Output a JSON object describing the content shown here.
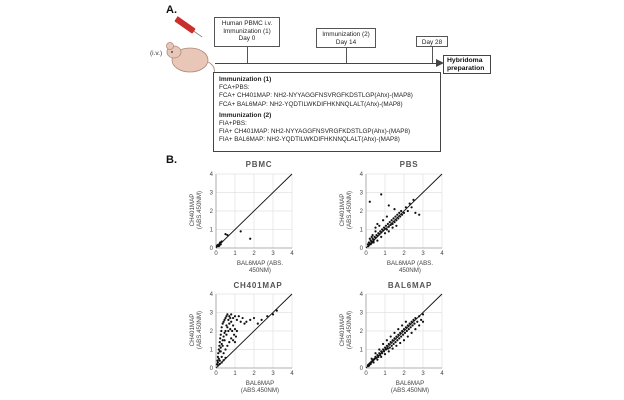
{
  "panel_a": {
    "label": "A.",
    "route_label": "(i.v.)",
    "timeline_boxes": [
      {
        "lines": [
          "Human PBMC i.v.",
          "Immunization (1)",
          "Day 0"
        ]
      },
      {
        "lines": [
          "Immunization (2)",
          "Day 14"
        ]
      },
      {
        "lines": [
          "Day 28"
        ]
      }
    ],
    "hybridoma_label": [
      "Hybridoma",
      "preparation"
    ],
    "immunization": [
      {
        "title": "Immunization (1)",
        "lines": [
          "FCA+PBS:",
          "FCA+ CH401MAP: NH2-NYYAGGFNSVRGFKDSTLGP(Ahx)-(MAP8)",
          "FCA+ BAL6MAP: NH2-YQDTILWKDIFHKNNQLALT(Ahx)-(MAP8)"
        ]
      },
      {
        "title": "Immunization (2)",
        "lines": [
          "FIA+PBS:",
          "FIA+ CH401MAP: NH2-NYYAGGFNSVRGFKDSTLGP(Ahx)-(MAP8)",
          "FIA+ BAL6MAP: NH2-YQDTILWKDIFHKNNQLALT(Ahx)-(MAP8)"
        ]
      }
    ]
  },
  "panel_b": {
    "label": "B.",
    "plots": [
      {
        "title": "PBMC",
        "ylabel": [
          "CH401MAP",
          "(ABS.450NM)"
        ],
        "xlabel": [
          "BAL6MAP (ABS.",
          "450NM)"
        ]
      },
      {
        "title": "PBS",
        "ylabel": [
          "CH401MAP",
          "(ABS.450NM)"
        ],
        "xlabel": [
          "BAL6MAP (ABS.",
          "450NM)"
        ]
      },
      {
        "title": "CH401MAP",
        "ylabel": [
          "CH401MAP",
          "(ABS.450NM)"
        ],
        "xlabel": [
          "BAL6MAP",
          "(ABS.450NM)"
        ]
      },
      {
        "title": "BAL6MAP",
        "ylabel": [
          "CH401MAP",
          "(ABS.450NM)"
        ],
        "xlabel": [
          "BAL6MAP",
          "(ABS.450NM)"
        ]
      }
    ]
  },
  "chart_data": [
    {
      "type": "scatter",
      "title": "PBMC",
      "xlabel": "BAL6MAP (ABS. 450NM)",
      "ylabel": "CH401MAP (ABS.450NM)",
      "xlim": [
        0,
        4
      ],
      "ylim": [
        0,
        4
      ],
      "xticks": [
        "0",
        "1",
        "2",
        "3",
        "4"
      ],
      "yticks": [
        "0",
        "1",
        "2",
        "3",
        "4"
      ],
      "reference_line": "y = x",
      "points": [
        [
          0.05,
          0.1
        ],
        [
          0.08,
          0.15
        ],
        [
          0.1,
          0.12
        ],
        [
          0.12,
          0.18
        ],
        [
          0.15,
          0.1
        ],
        [
          0.2,
          0.25
        ],
        [
          0.25,
          0.2
        ],
        [
          0.3,
          0.35
        ],
        [
          0.22,
          0.3
        ],
        [
          0.18,
          0.14
        ],
        [
          0.5,
          0.75
        ],
        [
          0.6,
          0.7
        ],
        [
          1.3,
          0.9
        ],
        [
          1.8,
          0.5
        ]
      ]
    },
    {
      "type": "scatter",
      "title": "PBS",
      "xlabel": "BAL6MAP (ABS. 450NM)",
      "ylabel": "CH401MAP (ABS.450NM)",
      "xlim": [
        0,
        4
      ],
      "ylim": [
        0,
        4
      ],
      "xticks": [
        "0",
        "1",
        "2",
        "3",
        "4"
      ],
      "yticks": [
        "0",
        "1",
        "2",
        "3",
        "4"
      ],
      "reference_line": "y = x",
      "points": [
        [
          0.1,
          0.2
        ],
        [
          0.15,
          0.3
        ],
        [
          0.2,
          0.25
        ],
        [
          0.25,
          0.4
        ],
        [
          0.3,
          0.35
        ],
        [
          0.35,
          0.5
        ],
        [
          0.4,
          0.45
        ],
        [
          0.45,
          0.6
        ],
        [
          0.5,
          0.55
        ],
        [
          0.55,
          0.7
        ],
        [
          0.6,
          0.65
        ],
        [
          0.65,
          0.8
        ],
        [
          0.7,
          0.75
        ],
        [
          0.75,
          0.9
        ],
        [
          0.8,
          0.85
        ],
        [
          0.85,
          1.0
        ],
        [
          0.9,
          0.95
        ],
        [
          0.95,
          1.1
        ],
        [
          1.0,
          1.05
        ],
        [
          1.05,
          1.2
        ],
        [
          1.1,
          1.0
        ],
        [
          1.15,
          1.3
        ],
        [
          1.2,
          1.15
        ],
        [
          1.25,
          1.4
        ],
        [
          1.3,
          1.25
        ],
        [
          1.35,
          1.5
        ],
        [
          1.4,
          1.3
        ],
        [
          1.45,
          1.6
        ],
        [
          1.5,
          1.4
        ],
        [
          1.55,
          1.7
        ],
        [
          1.6,
          1.5
        ],
        [
          1.65,
          1.8
        ],
        [
          1.7,
          1.6
        ],
        [
          1.75,
          1.9
        ],
        [
          1.8,
          1.7
        ],
        [
          1.85,
          2.0
        ],
        [
          1.9,
          1.8
        ],
        [
          2.0,
          1.9
        ],
        [
          2.1,
          2.2
        ],
        [
          2.2,
          2.0
        ],
        [
          2.3,
          2.4
        ],
        [
          2.4,
          2.2
        ],
        [
          2.5,
          2.6
        ],
        [
          0.3,
          0.6
        ],
        [
          0.5,
          0.9
        ],
        [
          0.7,
          1.2
        ],
        [
          0.9,
          1.5
        ],
        [
          1.1,
          1.7
        ],
        [
          0.4,
          0.3
        ],
        [
          0.6,
          0.4
        ],
        [
          0.8,
          0.6
        ],
        [
          1.0,
          0.8
        ],
        [
          1.2,
          0.9
        ],
        [
          1.4,
          1.1
        ],
        [
          1.6,
          1.2
        ],
        [
          0.2,
          0.5
        ],
        [
          0.35,
          0.7
        ],
        [
          0.5,
          1.1
        ],
        [
          0.6,
          1.3
        ],
        [
          0.2,
          2.5
        ],
        [
          0.8,
          2.9
        ],
        [
          1.2,
          2.3
        ],
        [
          1.5,
          2.1
        ],
        [
          2.6,
          1.9
        ],
        [
          2.8,
          1.8
        ],
        [
          0.15,
          0.15
        ],
        [
          0.25,
          0.2
        ],
        [
          0.3,
          0.28
        ],
        [
          0.12,
          0.1
        ],
        [
          0.4,
          0.38
        ]
      ]
    },
    {
      "type": "scatter",
      "title": "CH401MAP",
      "xlabel": "BAL6MAP (ABS.450NM)",
      "ylabel": "CH401MAP (ABS.450NM)",
      "xlim": [
        0,
        4
      ],
      "ylim": [
        0,
        4
      ],
      "xticks": [
        "0",
        "1",
        "2",
        "3",
        "4"
      ],
      "yticks": [
        "0",
        "1",
        "2",
        "3",
        "4"
      ],
      "reference_line": "y = x",
      "points": [
        [
          0.05,
          0.2
        ],
        [
          0.08,
          0.4
        ],
        [
          0.1,
          0.6
        ],
        [
          0.12,
          0.8
        ],
        [
          0.15,
          1.0
        ],
        [
          0.18,
          1.2
        ],
        [
          0.2,
          1.4
        ],
        [
          0.22,
          1.6
        ],
        [
          0.25,
          1.8
        ],
        [
          0.28,
          2.0
        ],
        [
          0.3,
          2.2
        ],
        [
          0.35,
          2.4
        ],
        [
          0.4,
          2.5
        ],
        [
          0.45,
          2.6
        ],
        [
          0.5,
          2.7
        ],
        [
          0.55,
          2.8
        ],
        [
          0.6,
          2.9
        ],
        [
          0.7,
          2.8
        ],
        [
          0.8,
          2.9
        ],
        [
          0.9,
          2.7
        ],
        [
          1.0,
          2.8
        ],
        [
          1.1,
          2.6
        ],
        [
          1.2,
          2.8
        ],
        [
          1.3,
          2.5
        ],
        [
          1.4,
          2.7
        ],
        [
          1.5,
          2.4
        ],
        [
          0.2,
          0.9
        ],
        [
          0.3,
          1.3
        ],
        [
          0.4,
          1.7
        ],
        [
          0.5,
          2.0
        ],
        [
          0.6,
          2.2
        ],
        [
          0.7,
          2.4
        ],
        [
          0.8,
          2.5
        ],
        [
          0.9,
          2.3
        ],
        [
          1.0,
          2.1
        ],
        [
          1.1,
          2.0
        ],
        [
          0.15,
          0.5
        ],
        [
          0.25,
          0.9
        ],
        [
          0.35,
          1.2
        ],
        [
          0.45,
          1.5
        ],
        [
          0.55,
          1.8
        ],
        [
          0.65,
          2.0
        ],
        [
          0.75,
          2.1
        ],
        [
          0.85,
          2.0
        ],
        [
          0.95,
          1.8
        ],
        [
          1.05,
          1.7
        ],
        [
          0.1,
          0.3
        ],
        [
          0.2,
          0.4
        ],
        [
          0.3,
          0.6
        ],
        [
          0.4,
          0.8
        ],
        [
          0.5,
          1.0
        ],
        [
          0.6,
          1.2
        ],
        [
          0.7,
          1.4
        ],
        [
          0.8,
          1.6
        ],
        [
          0.9,
          1.5
        ],
        [
          1.0,
          1.4
        ],
        [
          0.12,
          0.15
        ],
        [
          0.2,
          0.22
        ],
        [
          0.3,
          0.3
        ],
        [
          0.4,
          0.42
        ],
        [
          0.5,
          0.55
        ],
        [
          1.6,
          2.5
        ],
        [
          1.8,
          2.6
        ],
        [
          2.0,
          2.7
        ],
        [
          2.2,
          2.4
        ],
        [
          2.4,
          2.6
        ],
        [
          2.7,
          2.8
        ],
        [
          3.0,
          2.9
        ],
        [
          3.2,
          3.1
        ],
        [
          0.25,
          1.1
        ],
        [
          0.35,
          1.5
        ],
        [
          0.45,
          1.9
        ],
        [
          0.55,
          2.3
        ],
        [
          0.65,
          2.6
        ],
        [
          0.75,
          2.7
        ]
      ]
    },
    {
      "type": "scatter",
      "title": "BAL6MAP",
      "xlabel": "BAL6MAP (ABS.450NM)",
      "ylabel": "CH401MAP (ABS.450NM)",
      "xlim": [
        0,
        4
      ],
      "ylim": [
        0,
        4
      ],
      "xticks": [
        "0",
        "1",
        "2",
        "3",
        "4"
      ],
      "yticks": [
        "0",
        "1",
        "2",
        "3",
        "4"
      ],
      "reference_line": "y = x",
      "points": [
        [
          0.1,
          0.15
        ],
        [
          0.15,
          0.2
        ],
        [
          0.2,
          0.25
        ],
        [
          0.25,
          0.3
        ],
        [
          0.3,
          0.35
        ],
        [
          0.35,
          0.4
        ],
        [
          0.4,
          0.45
        ],
        [
          0.45,
          0.5
        ],
        [
          0.5,
          0.6
        ],
        [
          0.55,
          0.55
        ],
        [
          0.6,
          0.7
        ],
        [
          0.65,
          0.6
        ],
        [
          0.7,
          0.8
        ],
        [
          0.75,
          0.7
        ],
        [
          0.8,
          0.9
        ],
        [
          0.85,
          0.8
        ],
        [
          0.9,
          1.0
        ],
        [
          0.95,
          0.9
        ],
        [
          1.0,
          1.1
        ],
        [
          1.05,
          1.0
        ],
        [
          1.1,
          1.2
        ],
        [
          1.15,
          1.05
        ],
        [
          1.2,
          1.3
        ],
        [
          1.25,
          1.1
        ],
        [
          1.3,
          1.4
        ],
        [
          1.35,
          1.2
        ],
        [
          1.4,
          1.5
        ],
        [
          1.45,
          1.3
        ],
        [
          1.5,
          1.6
        ],
        [
          1.55,
          1.4
        ],
        [
          1.6,
          1.7
        ],
        [
          1.65,
          1.5
        ],
        [
          1.7,
          1.8
        ],
        [
          1.75,
          1.6
        ],
        [
          1.8,
          1.9
        ],
        [
          1.85,
          1.7
        ],
        [
          1.9,
          2.0
        ],
        [
          1.95,
          1.8
        ],
        [
          2.0,
          2.1
        ],
        [
          2.05,
          1.9
        ],
        [
          2.1,
          2.2
        ],
        [
          2.15,
          2.0
        ],
        [
          2.2,
          2.3
        ],
        [
          2.25,
          2.1
        ],
        [
          2.3,
          2.4
        ],
        [
          2.35,
          2.2
        ],
        [
          2.4,
          2.5
        ],
        [
          2.45,
          2.3
        ],
        [
          2.5,
          2.6
        ],
        [
          2.55,
          2.4
        ],
        [
          2.6,
          2.7
        ],
        [
          2.7,
          2.5
        ],
        [
          2.8,
          2.8
        ],
        [
          2.9,
          2.6
        ],
        [
          3.0,
          2.9
        ],
        [
          0.3,
          0.5
        ],
        [
          0.5,
          0.8
        ],
        [
          0.7,
          1.0
        ],
        [
          0.9,
          1.3
        ],
        [
          1.1,
          1.5
        ],
        [
          1.3,
          1.7
        ],
        [
          1.5,
          1.9
        ],
        [
          1.7,
          2.1
        ],
        [
          1.9,
          2.3
        ],
        [
          2.1,
          2.5
        ],
        [
          0.4,
          0.3
        ],
        [
          0.6,
          0.45
        ],
        [
          0.8,
          0.6
        ],
        [
          1.0,
          0.75
        ],
        [
          1.2,
          0.9
        ],
        [
          1.4,
          1.05
        ],
        [
          1.6,
          1.2
        ],
        [
          1.8,
          1.35
        ],
        [
          2.0,
          1.5
        ],
        [
          2.2,
          1.7
        ],
        [
          2.4,
          1.9
        ],
        [
          2.6,
          2.1
        ],
        [
          2.8,
          2.3
        ],
        [
          3.0,
          2.5
        ],
        [
          0.2,
          0.2
        ],
        [
          0.15,
          0.12
        ],
        [
          0.25,
          0.22
        ],
        [
          0.12,
          0.1
        ],
        [
          0.18,
          0.17
        ]
      ]
    }
  ]
}
